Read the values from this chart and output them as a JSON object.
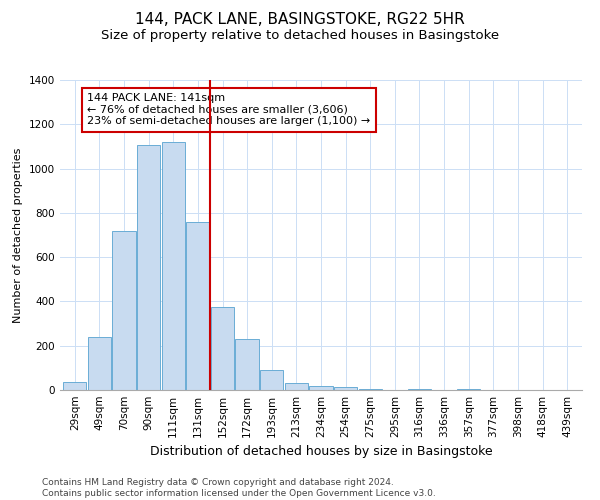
{
  "title": "144, PACK LANE, BASINGSTOKE, RG22 5HR",
  "subtitle": "Size of property relative to detached houses in Basingstoke",
  "xlabel": "Distribution of detached houses by size in Basingstoke",
  "ylabel": "Number of detached properties",
  "bar_labels": [
    "29sqm",
    "49sqm",
    "70sqm",
    "90sqm",
    "111sqm",
    "131sqm",
    "152sqm",
    "172sqm",
    "193sqm",
    "213sqm",
    "234sqm",
    "254sqm",
    "275sqm",
    "295sqm",
    "316sqm",
    "336sqm",
    "357sqm",
    "377sqm",
    "398sqm",
    "418sqm",
    "439sqm"
  ],
  "bar_values": [
    35,
    240,
    720,
    1105,
    1120,
    760,
    375,
    230,
    90,
    30,
    20,
    15,
    5,
    0,
    5,
    0,
    5,
    0,
    0,
    0,
    0
  ],
  "bar_color": "#c8dbf0",
  "bar_edge_color": "#6aadd5",
  "vline_x": 5.5,
  "vline_color": "#cc0000",
  "annotation_text": "144 PACK LANE: 141sqm\n← 76% of detached houses are smaller (3,606)\n23% of semi-detached houses are larger (1,100) →",
  "annotation_box_color": "#ffffff",
  "annotation_box_edge_color": "#cc0000",
  "ylim": [
    0,
    1400
  ],
  "yticks": [
    0,
    200,
    400,
    600,
    800,
    1000,
    1200,
    1400
  ],
  "footer_text": "Contains HM Land Registry data © Crown copyright and database right 2024.\nContains public sector information licensed under the Open Government Licence v3.0.",
  "title_fontsize": 11,
  "subtitle_fontsize": 9.5,
  "xlabel_fontsize": 9,
  "ylabel_fontsize": 8,
  "tick_fontsize": 7.5,
  "annotation_fontsize": 8,
  "footer_fontsize": 6.5,
  "bg_color": "#ffffff",
  "grid_color": "#ccdff5"
}
